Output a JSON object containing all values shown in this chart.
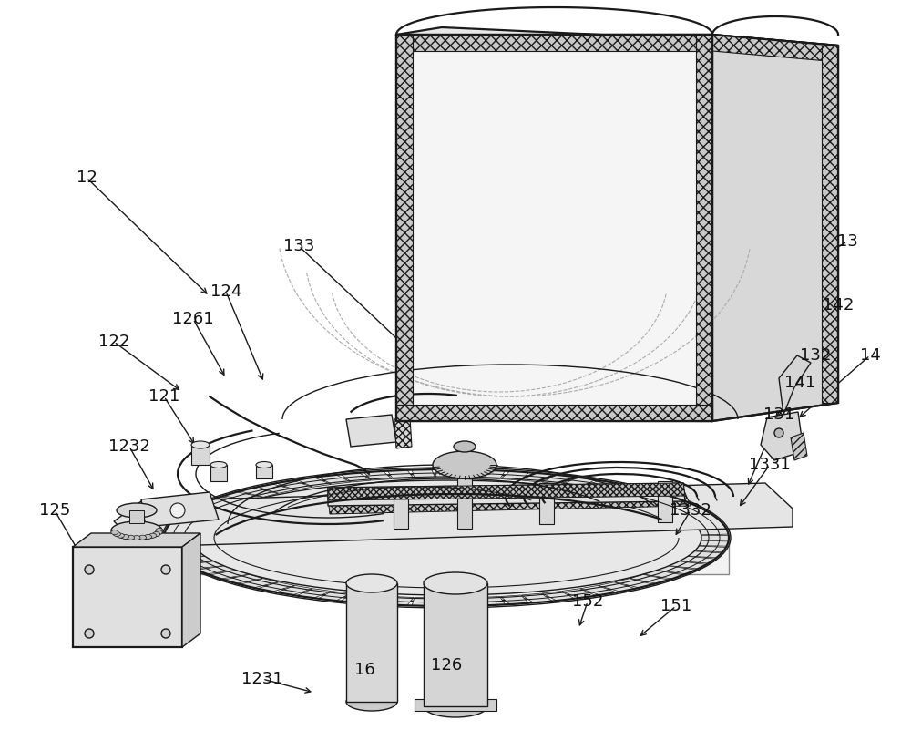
{
  "bg": "#ffffff",
  "lc": "#1a1a1a",
  "lw": 1.0,
  "lw2": 1.6,
  "label_fs": 13,
  "labels": [
    [
      "12",
      95,
      195,
      230,
      325
    ],
    [
      "13",
      930,
      265,
      855,
      310
    ],
    [
      "14",
      955,
      390,
      875,
      460
    ],
    [
      "16",
      400,
      735,
      415,
      760
    ],
    [
      "121",
      180,
      435,
      215,
      490
    ],
    [
      "122",
      125,
      375,
      200,
      430
    ],
    [
      "124",
      248,
      320,
      290,
      420
    ],
    [
      "125",
      60,
      560,
      95,
      620
    ],
    [
      "126",
      490,
      730,
      495,
      760
    ],
    [
      "131",
      855,
      455,
      820,
      535
    ],
    [
      "132",
      895,
      390,
      850,
      460
    ],
    [
      "133",
      328,
      270,
      450,
      385
    ],
    [
      "141",
      878,
      420,
      850,
      490
    ],
    [
      "142",
      920,
      335,
      868,
      405
    ],
    [
      "151",
      742,
      665,
      700,
      700
    ],
    [
      "152",
      645,
      660,
      635,
      690
    ],
    [
      "1231",
      288,
      745,
      345,
      760
    ],
    [
      "1232",
      142,
      490,
      170,
      540
    ],
    [
      "1261",
      212,
      350,
      248,
      415
    ],
    [
      "1331",
      845,
      510,
      810,
      558
    ],
    [
      "1332",
      758,
      560,
      740,
      590
    ]
  ]
}
